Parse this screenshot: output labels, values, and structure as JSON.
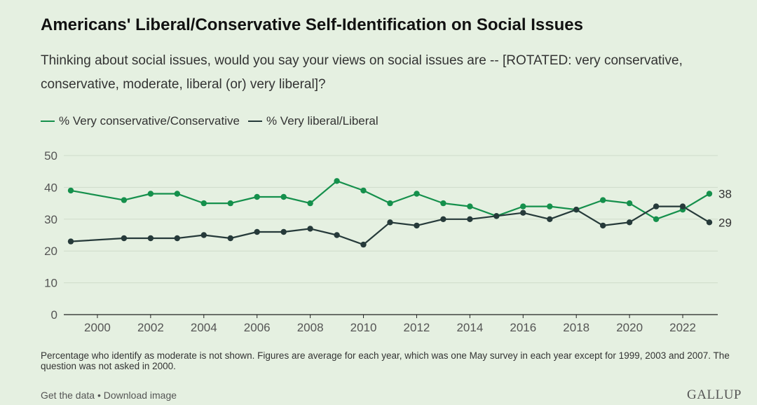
{
  "header": {
    "title": "Americans' Liberal/Conservative Self-Identification on Social Issues",
    "subtitle": "Thinking about social issues, would you say your views on social issues are -- [ROTATED: very conservative, conservative, moderate, liberal (or) very liberal]?"
  },
  "footer": {
    "note": "Percentage who identify as moderate is not shown. Figures are average for each year, which was one May survey in each year except for 1999, 2003 and 2007. The question was not asked in 2000.",
    "get_data": "Get the data",
    "separator": " • ",
    "download": "Download image",
    "logo": "GALLUP"
  },
  "chart_data": {
    "type": "line",
    "xlim": [
      1999,
      2023
    ],
    "ylim": [
      0,
      50
    ],
    "y_ticks": [
      0,
      10,
      20,
      30,
      40,
      50
    ],
    "x_ticks": [
      2000,
      2002,
      2004,
      2006,
      2008,
      2010,
      2012,
      2014,
      2016,
      2018,
      2020,
      2022
    ],
    "grid": true,
    "legend_position": "top-left",
    "series": [
      {
        "name": "% Very conservative/Conservative",
        "color": "#15904c",
        "end_label": "38",
        "points": [
          [
            1999,
            39
          ],
          [
            2001,
            36
          ],
          [
            2002,
            38
          ],
          [
            2003,
            38
          ],
          [
            2004,
            35
          ],
          [
            2005,
            35
          ],
          [
            2006,
            37
          ],
          [
            2007,
            37
          ],
          [
            2008,
            35
          ],
          [
            2009,
            42
          ],
          [
            2010,
            39
          ],
          [
            2011,
            35
          ],
          [
            2012,
            38
          ],
          [
            2013,
            35
          ],
          [
            2014,
            34
          ],
          [
            2015,
            31
          ],
          [
            2016,
            34
          ],
          [
            2017,
            34
          ],
          [
            2018,
            33
          ],
          [
            2019,
            36
          ],
          [
            2020,
            35
          ],
          [
            2021,
            30
          ],
          [
            2022,
            33
          ],
          [
            2023,
            38
          ]
        ]
      },
      {
        "name": "% Very liberal/Liberal",
        "color": "#263a3a",
        "end_label": "29",
        "points": [
          [
            1999,
            23
          ],
          [
            2001,
            24
          ],
          [
            2002,
            24
          ],
          [
            2003,
            24
          ],
          [
            2004,
            25
          ],
          [
            2005,
            24
          ],
          [
            2006,
            26
          ],
          [
            2007,
            26
          ],
          [
            2008,
            27
          ],
          [
            2009,
            25
          ],
          [
            2010,
            22
          ],
          [
            2011,
            29
          ],
          [
            2012,
            28
          ],
          [
            2013,
            30
          ],
          [
            2014,
            30
          ],
          [
            2015,
            31
          ],
          [
            2016,
            32
          ],
          [
            2017,
            30
          ],
          [
            2018,
            33
          ],
          [
            2019,
            28
          ],
          [
            2020,
            29
          ],
          [
            2021,
            34
          ],
          [
            2022,
            34
          ],
          [
            2023,
            29
          ]
        ]
      }
    ]
  }
}
